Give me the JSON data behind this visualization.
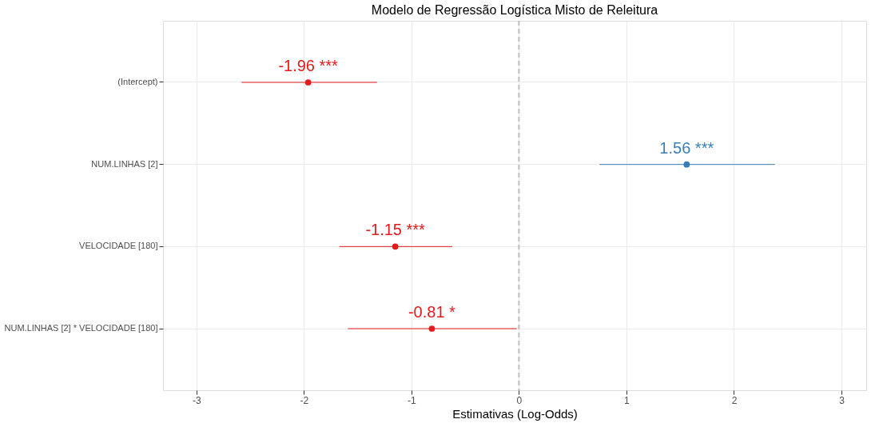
{
  "chart_data": {
    "type": "scatter",
    "orientation": "horizontal",
    "title": "Modelo de Regressão Logística Misto de Releitura",
    "xlabel": "Estimativas (Log-Odds)",
    "categories": [
      "(Intercept)",
      "NUM.LINHAS [2]",
      "VELOCIDADE [180]",
      "NUM.LINHAS [2] * VELOCIDADE [180]"
    ],
    "values": [
      -1.96,
      1.56,
      -1.15,
      -0.81
    ],
    "errors": [
      [
        -2.58,
        -1.32
      ],
      [
        0.75,
        2.38
      ],
      [
        -1.67,
        -0.62
      ],
      [
        -1.59,
        -0.02
      ]
    ],
    "colors": [
      "#e41a1c",
      "#377eb8",
      "#e41a1c",
      "#e41a1c"
    ],
    "value_labels": [
      "-1.96 ***",
      "1.56 ***",
      "-1.15 ***",
      "-0.81 *"
    ],
    "xlim": [
      -3.31,
      3.23
    ],
    "xticks": [
      -3,
      -2,
      -1,
      0,
      1,
      2,
      3
    ],
    "ref_lines": [
      {
        "axis": "x",
        "value": 0,
        "color": "#bdbdbd",
        "line_style": "dashed"
      }
    ],
    "grid": true,
    "marker": "circle"
  }
}
